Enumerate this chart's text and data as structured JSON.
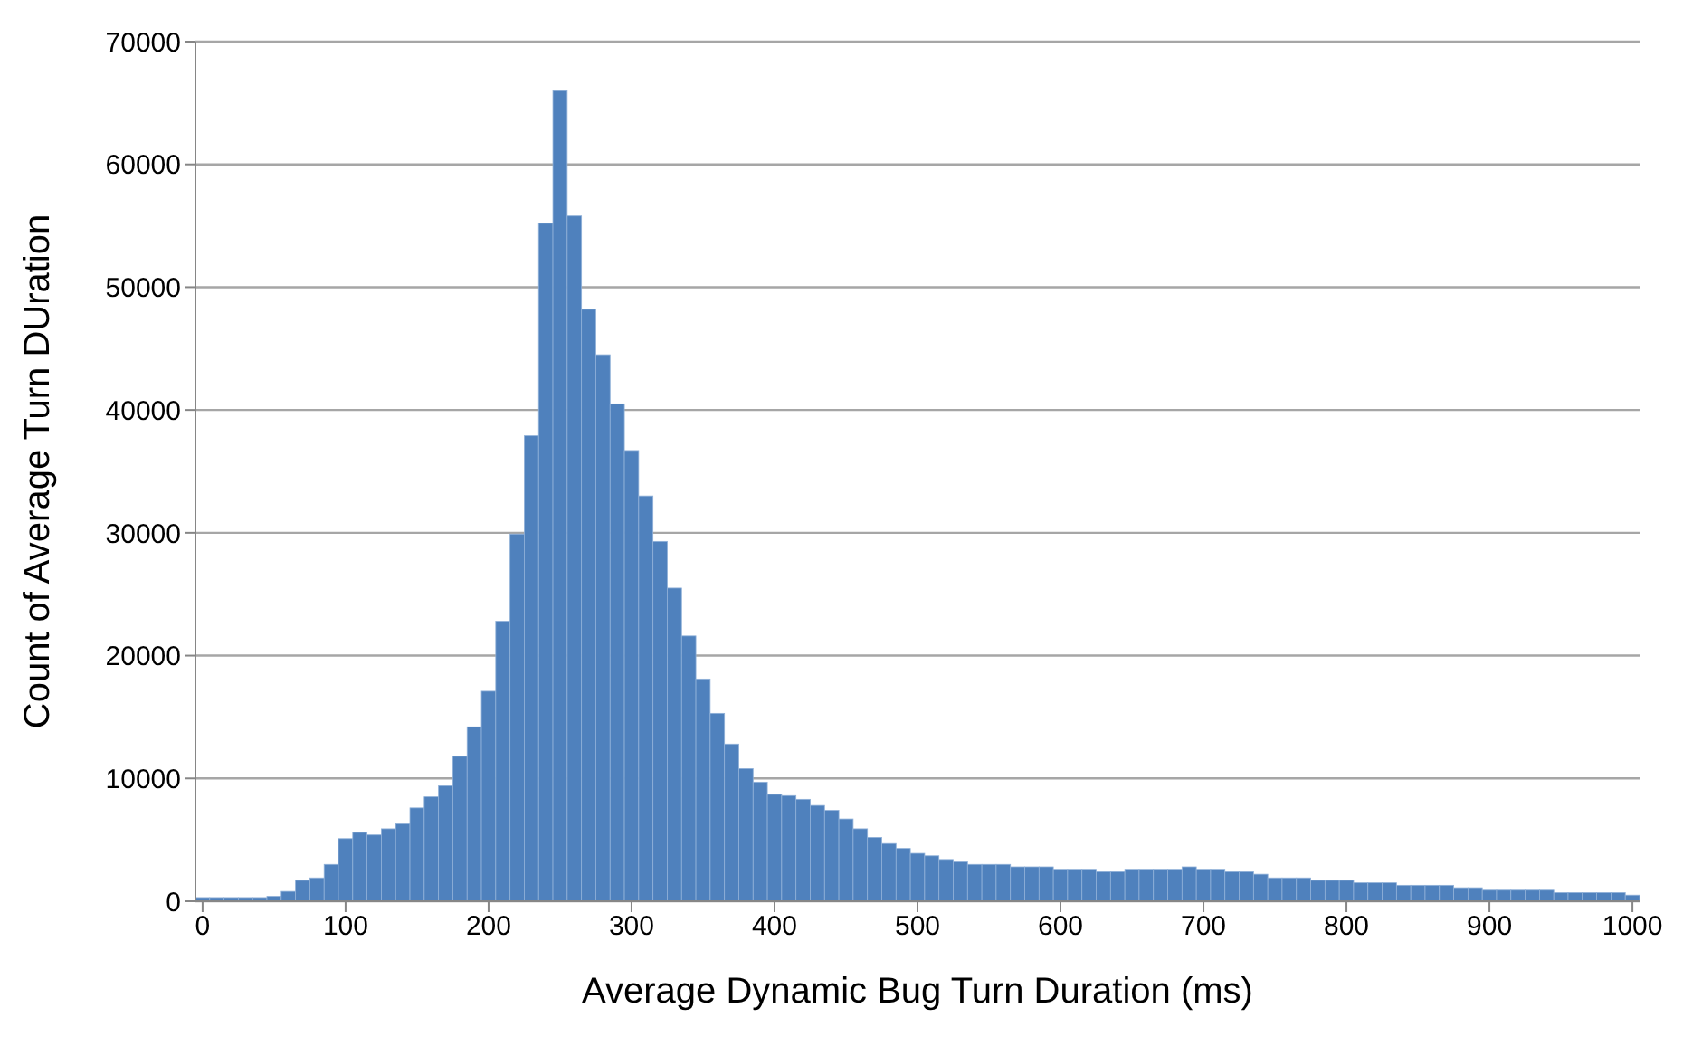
{
  "chart_data": {
    "type": "histogram",
    "xlabel": "Average Dynamic Bug Turn Duration (ms)",
    "ylabel": "Count of Average Turn DUration",
    "bins": [
      -5,
      5,
      15,
      25,
      35,
      45,
      55,
      65,
      75,
      85,
      95,
      105,
      115,
      125,
      135,
      145,
      155,
      165,
      175,
      185,
      195,
      205,
      215,
      225,
      235,
      245,
      255,
      265,
      275,
      285,
      295,
      305,
      315,
      325,
      335,
      345,
      355,
      365,
      375,
      385,
      395,
      405,
      415,
      425,
      435,
      445,
      455,
      465,
      475,
      485,
      495,
      505,
      515,
      525,
      535,
      545,
      555,
      565,
      575,
      585,
      595,
      605,
      615,
      625,
      635,
      645,
      655,
      665,
      675,
      685,
      695,
      705,
      715,
      725,
      735,
      745,
      755,
      765,
      775,
      785,
      795,
      805,
      815,
      825,
      835,
      845,
      855,
      865,
      875,
      885,
      895,
      905,
      915,
      925,
      935,
      945,
      955,
      965,
      975,
      985,
      995,
      1005
    ],
    "values": [
      300,
      300,
      300,
      300,
      300,
      400,
      800,
      1700,
      1900,
      3000,
      5100,
      5600,
      5400,
      5900,
      6300,
      7600,
      8500,
      9400,
      11800,
      14200,
      17100,
      22800,
      29900,
      37900,
      55200,
      66000,
      55800,
      48200,
      44500,
      40500,
      36700,
      33000,
      29300,
      25500,
      21600,
      18100,
      15300,
      12800,
      10800,
      9700,
      8700,
      8600,
      8300,
      7800,
      7400,
      6700,
      5900,
      5200,
      4700,
      4300,
      3900,
      3700,
      3400,
      3200,
      3000,
      3000,
      3000,
      2800,
      2800,
      2800,
      2600,
      2600,
      2600,
      2400,
      2400,
      2600,
      2600,
      2600,
      2600,
      2800,
      2600,
      2600,
      2400,
      2400,
      2200,
      1900,
      1900,
      1900,
      1700,
      1700,
      1700,
      1500,
      1500,
      1500,
      1300,
      1300,
      1300,
      1300,
      1100,
      1100,
      900,
      900,
      900,
      900,
      900,
      700,
      700,
      700,
      700,
      700,
      500
    ],
    "color": "#4f81bd",
    "xlim": [
      -5,
      1005
    ],
    "xticks": [
      0,
      100,
      200,
      300,
      400,
      500,
      600,
      700,
      800,
      900,
      1000
    ],
    "ylim": [
      0,
      70000
    ],
    "yticks": [
      0,
      10000,
      20000,
      30000,
      40000,
      50000,
      60000,
      70000
    ],
    "grid": "y"
  }
}
